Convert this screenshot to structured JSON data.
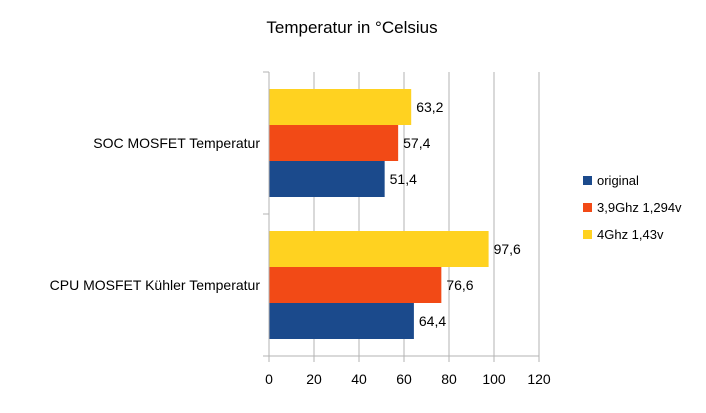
{
  "chart_data": {
    "type": "bar",
    "orientation": "horizontal",
    "title": "Temperatur in °Celsius",
    "xlabel": "",
    "ylabel": "",
    "xlim": [
      0,
      120
    ],
    "x_ticks": [
      0,
      20,
      40,
      60,
      80,
      100,
      120
    ],
    "grid": "vertical",
    "legend_position": "right",
    "categories": [
      "SOC MOSFET Temperatur",
      "CPU MOSFET Kühler Temperatur"
    ],
    "series": [
      {
        "name": "original",
        "color": "#1B4A8C",
        "values": [
          51.4,
          64.4
        ],
        "labels": [
          "51,4",
          "64,4"
        ]
      },
      {
        "name": "3,9Ghz 1,294v",
        "color": "#F24A16",
        "values": [
          57.4,
          76.6
        ],
        "labels": [
          "57,4",
          "76,6"
        ]
      },
      {
        "name": "4Ghz 1,43v",
        "color": "#FFD220",
        "values": [
          63.2,
          97.6
        ],
        "labels": [
          "63,2",
          "97,6"
        ]
      }
    ]
  }
}
